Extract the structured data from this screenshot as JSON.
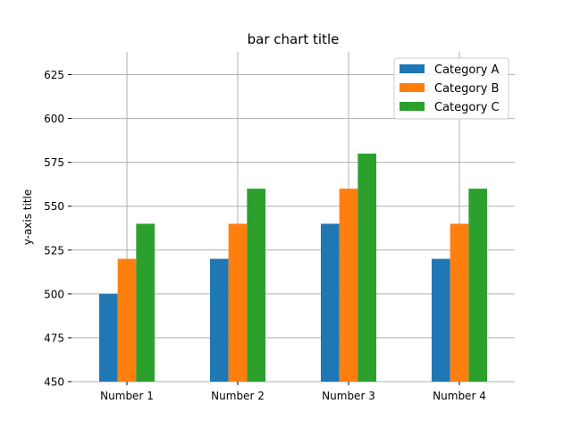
{
  "chart_data": {
    "type": "bar",
    "title": "bar chart title",
    "xlabel": "",
    "ylabel": "y-axis title",
    "categories": [
      "Number 1",
      "Number 2",
      "Number 3",
      "Number 4"
    ],
    "series": [
      {
        "name": "Category A",
        "color": "#1f77b4",
        "values": [
          500,
          520,
          540,
          520
        ]
      },
      {
        "name": "Category B",
        "color": "#ff7f0e",
        "values": [
          520,
          540,
          560,
          540
        ]
      },
      {
        "name": "Category C",
        "color": "#2ca02c",
        "values": [
          540,
          560,
          580,
          560
        ]
      }
    ],
    "ylim": [
      450,
      638
    ],
    "yticks": [
      450,
      475,
      500,
      525,
      550,
      575,
      600,
      625
    ],
    "grid": true,
    "legend_position": "top-right"
  }
}
